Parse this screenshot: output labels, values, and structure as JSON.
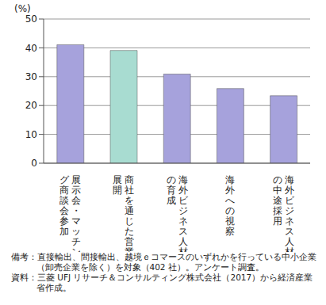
{
  "chart_data": {
    "type": "bar",
    "ylabel": "(%)",
    "categories": [
      "展示会・マッチング商談会参加",
      "商社を通じた営業展開",
      "海外ビジネス人材の育成",
      "海外への視察",
      "海外ビジネス人材の中途採用"
    ],
    "values": [
      41.1,
      39.1,
      30.9,
      25.9,
      23.4
    ],
    "colors": [
      "#a6a2dc",
      "#a8dcd1",
      "#a6a2dc",
      "#a6a2dc",
      "#a6a2dc"
    ],
    "ylim": [
      0,
      50
    ],
    "yticks": [
      0,
      10,
      20,
      30,
      40,
      50
    ],
    "grid": true,
    "notes": [
      "備考：直接輸出、間接輸出、越境ｅコマースのいずれかを行っている中小企業（卸売企業を除く）を対象（402 社）。アンケート調査。",
      "資料：三菱 UFJ リサーチ＆コンサルティング株式会社（2017）から経済産業省作成。"
    ]
  }
}
